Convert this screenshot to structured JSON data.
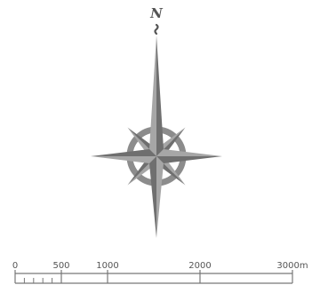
{
  "compass": {
    "north_label": "N"
  },
  "scale_bar": {
    "ticks": [
      {
        "value": 0,
        "label": "0"
      },
      {
        "value": 500,
        "label": "500"
      },
      {
        "value": 1000,
        "label": "1000"
      },
      {
        "value": 2000,
        "label": "2000"
      },
      {
        "value": 3000,
        "label": "3000m"
      }
    ],
    "sub_divisions": [
      100,
      200,
      300,
      400
    ],
    "max_value": 3000
  },
  "colors": {
    "rose_light": "#a6a6a6",
    "rose_dark": "#6f6f6f",
    "ring": "#8c8c8c",
    "text": "#555555",
    "bar": "#777777"
  }
}
